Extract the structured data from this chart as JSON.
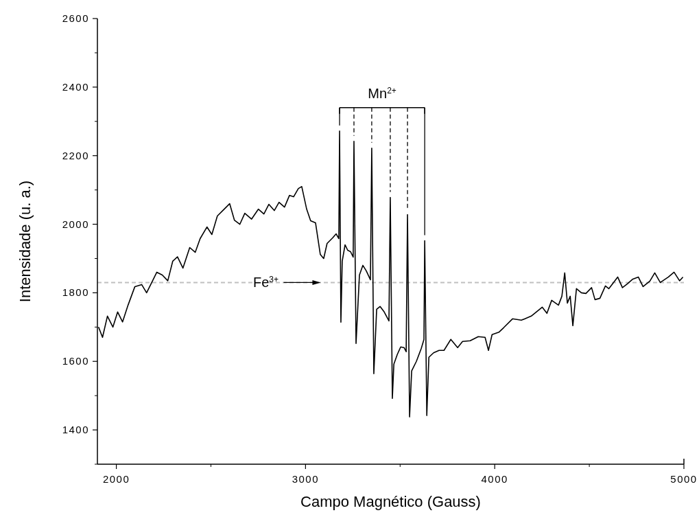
{
  "chart_data": {
    "type": "line",
    "xlabel": "Campo Magnético (Gauss)",
    "ylabel": "Intensidade (u. a.)",
    "xlim": [
      1900,
      5000
    ],
    "xticks": [
      2000,
      3000,
      4000,
      5000
    ],
    "ylim": [
      1300,
      2600
    ],
    "yticks": [
      1400,
      1600,
      1800,
      2000,
      2200,
      2400,
      2600
    ],
    "grid": false,
    "marker": "none",
    "line_style": "solid",
    "ref_lines": [
      {
        "axis": "y",
        "value": 1830,
        "color": "#c0c0c0",
        "line_style": "dashed"
      }
    ],
    "annotations": [
      "Mn$^{2+}$",
      {
        "text": "Fe$^{3+}$",
        "x": 2790,
        "y": 1830
      }
    ],
    "series": [
      {
        "color": "#000000",
        "x": [
          1906,
          1927,
          1953,
          1982,
          2007,
          2033,
          2062,
          2098,
          2134,
          2160,
          2189,
          2214,
          2243,
          2272,
          2298,
          2323,
          2352,
          2388,
          2417,
          2443,
          2479,
          2505,
          2534,
          2570,
          2599,
          2624,
          2653,
          2679,
          2715,
          2751,
          2780,
          2806,
          2835,
          2860,
          2889,
          2915,
          2937,
          2962,
          2980,
          3006,
          3027,
          3053,
          3078,
          3096,
          3114,
          3143,
          3162,
          3176,
          3180,
          3187,
          3194,
          3209,
          3223,
          3238,
          3252,
          3256,
          3267,
          3285,
          3303,
          3321,
          3343,
          3350,
          3361,
          3376,
          3394,
          3416,
          3441,
          3448,
          3459,
          3467,
          3485,
          3503,
          3521,
          3532,
          3539,
          3550,
          3561,
          3586,
          3612,
          3626,
          3630,
          3641,
          3652,
          3677,
          3706,
          3732,
          3768,
          3804,
          3830,
          3870,
          3913,
          3949,
          3967,
          3986,
          4022,
          4047,
          4094,
          4141,
          4193,
          4222,
          4251,
          4276,
          4301,
          4337,
          4355,
          4370,
          4384,
          4399,
          4413,
          4432,
          4458,
          4482,
          4512,
          4530,
          4556,
          4585,
          4603,
          4628,
          4650,
          4675,
          4701,
          4730,
          4759,
          4784,
          4820,
          4846,
          4875,
          4918,
          4948,
          4977,
          4995
        ],
        "values": [
          1700,
          1670,
          1732,
          1700,
          1744,
          1715,
          1764,
          1818,
          1824,
          1800,
          1832,
          1860,
          1852,
          1835,
          1892,
          1905,
          1872,
          1932,
          1918,
          1958,
          1992,
          1970,
          2024,
          2044,
          2060,
          2012,
          2000,
          2032,
          2015,
          2044,
          2030,
          2058,
          2040,
          2064,
          2050,
          2084,
          2080,
          2104,
          2110,
          2044,
          2010,
          2004,
          1912,
          1900,
          1944,
          1960,
          1972,
          1958,
          2272,
          1714,
          1892,
          1940,
          1924,
          1920,
          1904,
          2242,
          1652,
          1852,
          1880,
          1864,
          1838,
          2222,
          1564,
          1752,
          1760,
          1744,
          1718,
          2078,
          1492,
          1592,
          1620,
          1642,
          1640,
          1628,
          2028,
          1438,
          1572,
          1600,
          1638,
          1664,
          1952,
          1442,
          1612,
          1625,
          1632,
          1632,
          1664,
          1640,
          1658,
          1660,
          1672,
          1670,
          1632,
          1678,
          1685,
          1698,
          1724,
          1720,
          1732,
          1745,
          1758,
          1740,
          1778,
          1764,
          1790,
          1858,
          1770,
          1790,
          1704,
          1812,
          1800,
          1798,
          1815,
          1780,
          1784,
          1820,
          1812,
          1830,
          1846,
          1815,
          1826,
          1840,
          1846,
          1818,
          1834,
          1858,
          1830,
          1846,
          1860,
          1835,
          1846
        ]
      }
    ]
  }
}
